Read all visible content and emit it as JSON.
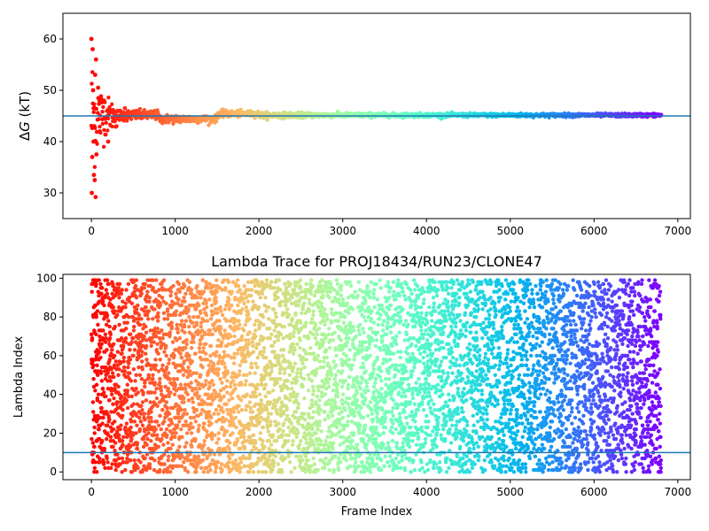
{
  "chart_data": [
    {
      "type": "scatter",
      "title": "",
      "xlabel": "",
      "ylabel": "ΔG (kT)",
      "ylabel_parts": {
        "delta": "Δ",
        "var": "G",
        "unit": " (kT)"
      },
      "xlim": [
        -340,
        7150
      ],
      "ylim": [
        25,
        65
      ],
      "xticks": [
        0,
        1000,
        2000,
        3000,
        4000,
        5000,
        6000,
        7000
      ],
      "yticks": [
        30,
        40,
        50,
        60
      ],
      "x_range": [
        0,
        6800
      ],
      "reference_line": 45,
      "reference_color": "#1f77b4",
      "colormap": "rainbow (red at start → violet at end)",
      "grid": false,
      "legend": "none",
      "series_description": "running free energy estimate converging from scattered 29–60 to ~45",
      "samples": [
        {
          "x": 0,
          "y": 60.0
        },
        {
          "x": 5,
          "y": 30.0
        },
        {
          "x": 10,
          "y": 37.0
        },
        {
          "x": 15,
          "y": 58.0
        },
        {
          "x": 20,
          "y": 50.0
        },
        {
          "x": 25,
          "y": 40.0
        },
        {
          "x": 30,
          "y": 33.5
        },
        {
          "x": 35,
          "y": 43.0
        },
        {
          "x": 40,
          "y": 32.5
        },
        {
          "x": 45,
          "y": 53.0
        },
        {
          "x": 50,
          "y": 29.2
        },
        {
          "x": 55,
          "y": 56.0
        },
        {
          "x": 60,
          "y": 37.5
        },
        {
          "x": 80,
          "y": 50.5
        },
        {
          "x": 100,
          "y": 42.0
        },
        {
          "x": 150,
          "y": 48.0
        },
        {
          "x": 200,
          "y": 40.0
        },
        {
          "x": 300,
          "y": 43.0
        },
        {
          "x": 400,
          "y": 46.5
        },
        {
          "x": 600,
          "y": 45.5
        },
        {
          "x": 800,
          "y": 45.0
        },
        {
          "x": 1000,
          "y": 44.3
        },
        {
          "x": 1200,
          "y": 44.5
        },
        {
          "x": 1500,
          "y": 45.2
        },
        {
          "x": 1800,
          "y": 45.6
        },
        {
          "x": 2000,
          "y": 45.3
        },
        {
          "x": 2500,
          "y": 45.3
        },
        {
          "x": 3000,
          "y": 45.1
        },
        {
          "x": 3500,
          "y": 45.2
        },
        {
          "x": 4000,
          "y": 45.1
        },
        {
          "x": 5000,
          "y": 45.2
        },
        {
          "x": 6000,
          "y": 45.2
        },
        {
          "x": 6800,
          "y": 45.2
        }
      ]
    },
    {
      "type": "scatter",
      "title": "Lambda Trace for PROJ18434/RUN23/CLONE47",
      "xlabel": "Frame Index",
      "ylabel": "Lambda Index",
      "xlim": [
        -340,
        7150
      ],
      "ylim": [
        -4,
        102
      ],
      "xticks": [
        0,
        1000,
        2000,
        3000,
        4000,
        5000,
        6000,
        7000
      ],
      "yticks": [
        0,
        20,
        40,
        60,
        80,
        100
      ],
      "x_range": [
        0,
        6800
      ],
      "y_range": [
        0,
        99
      ],
      "reference_line": 10,
      "reference_color": "#1f77b4",
      "colormap": "rainbow (red at start → violet at end)",
      "grid": false,
      "legend": "none",
      "series_description": "lambda index per frame, uniformly spread over 0–99"
    }
  ]
}
